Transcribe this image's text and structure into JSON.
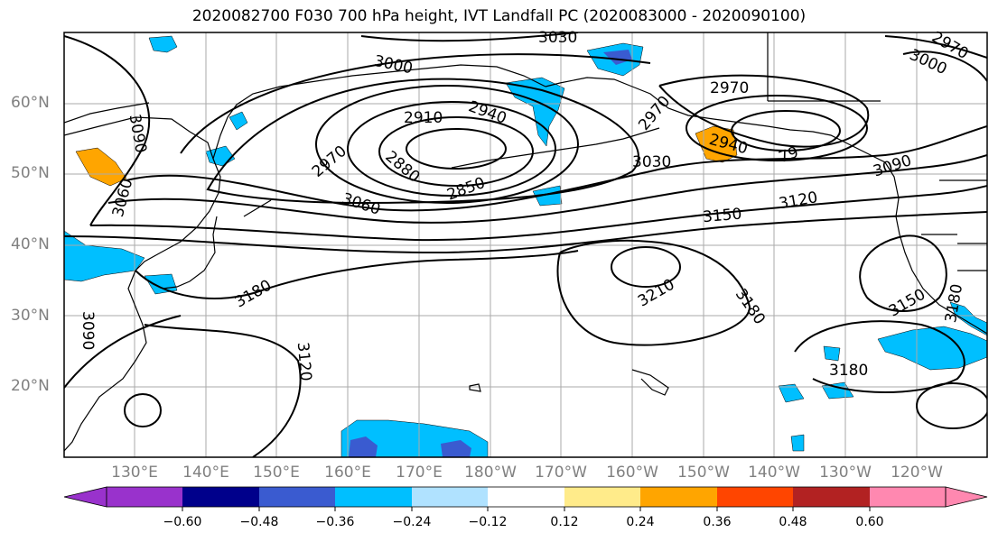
{
  "title": "2020082700 F030 700 hPa height, IVT Landfall PC (2020083000 - 2020090100)",
  "lat_labels": [
    "60°N",
    "50°N",
    "40°N",
    "30°N",
    "20°N"
  ],
  "lon_labels": [
    "130°E",
    "140°E",
    "150°E",
    "160°E",
    "170°E",
    "180°W",
    "170°W",
    "160°W",
    "150°W",
    "140°W",
    "130°W",
    "120°W"
  ],
  "contour_labels": [
    "3030",
    "3000",
    "2910",
    "2940",
    "2970",
    "2880",
    "2850",
    "3060",
    "3090",
    "3060",
    "2970",
    "2970",
    "2940",
    "3030",
    "3090",
    "3120",
    "3150",
    "3180",
    "3210",
    "3180",
    "3120",
    "3180",
    "3150",
    "3180",
    "3000",
    "2970",
    "3090",
    "79"
  ],
  "colorbar": {
    "ticks": [
      "−0.60",
      "−0.48",
      "−0.36",
      "−0.24",
      "−0.12",
      "0.12",
      "0.24",
      "0.36",
      "0.48",
      "0.60"
    ],
    "colors": [
      "#9932cc",
      "#00008b",
      "#3a5bd0",
      "#00bfff",
      "#b0e2ff",
      "#ffffff",
      "#ffeb8a",
      "#ffa500",
      "#ff4500",
      "#b22222",
      "#ff88b0"
    ]
  }
}
